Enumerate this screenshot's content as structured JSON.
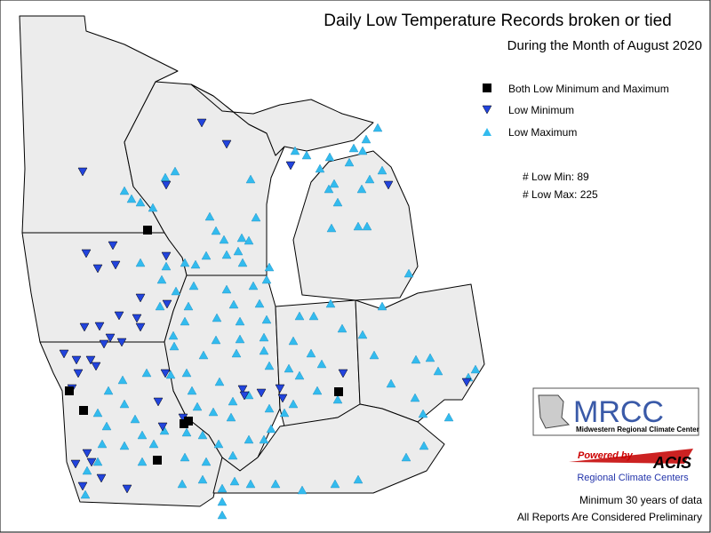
{
  "header": {
    "title": "Daily Low Temperature Records broken or tied",
    "subtitle": "During the Month of August 2020"
  },
  "legend": {
    "items": [
      "Both Low Minimum and Maximum",
      "Low Minimum",
      "Low Maximum"
    ]
  },
  "stats": [
    "# Low Min: 89",
    "# Low Max: 225"
  ],
  "logo": {
    "name": "MRCC",
    "full_name": "Midwestern Regional Climate Center",
    "powered_by": "Powered by",
    "acis": "ACIS",
    "acis_sub": "Regional Climate Centers"
  },
  "footer": [
    "Minimum 30 years of data",
    "All Reports Are Considered Preliminary"
  ]
}
